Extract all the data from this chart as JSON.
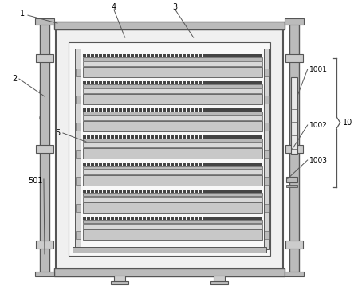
{
  "bg_color": "#ffffff",
  "line_color": "#555555",
  "light_gray": "#bbbbbb",
  "mid_gray": "#888888",
  "dark_gray": "#444444",
  "num_trays": 7,
  "ox": 70,
  "oy": 22,
  "bw": 285,
  "bh": 300
}
